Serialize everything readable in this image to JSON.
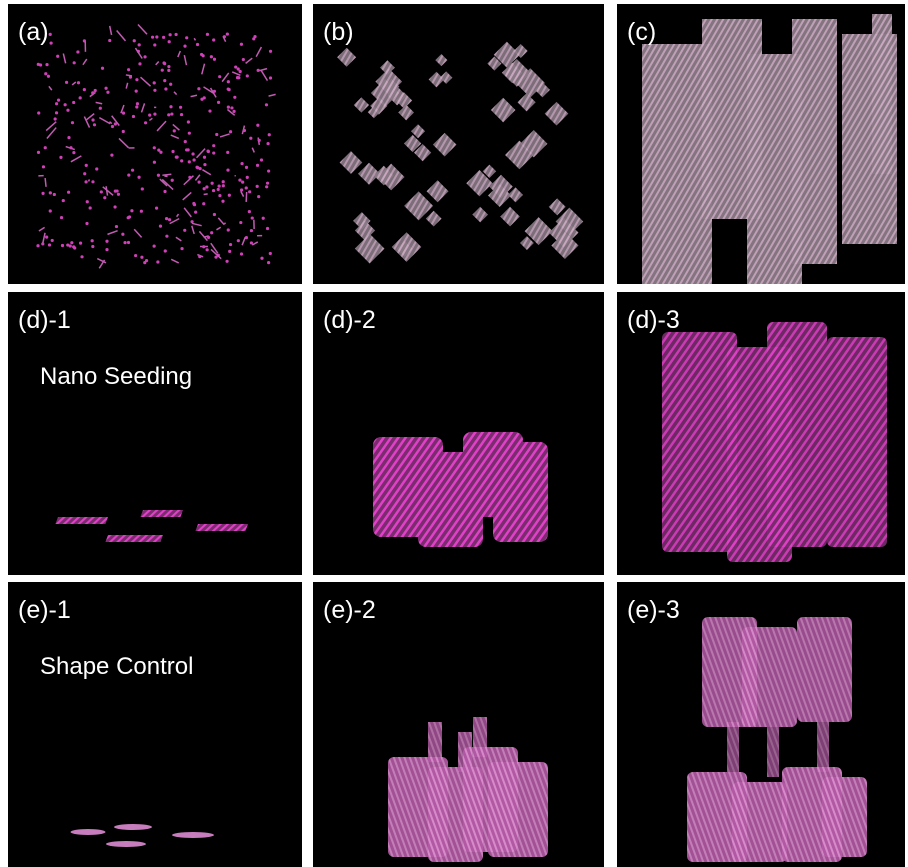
{
  "panels": [
    {
      "label": "(a)"
    },
    {
      "label": "(b)"
    },
    {
      "label": "(c)"
    },
    {
      "label": "(d)-1",
      "caption": "Nano Seeding"
    },
    {
      "label": "(d)-2"
    },
    {
      "label": "(d)-3"
    },
    {
      "label": "(e)-1",
      "caption": "Shape Control"
    },
    {
      "label": "(e)-2"
    },
    {
      "label": "(e)-3"
    }
  ]
}
